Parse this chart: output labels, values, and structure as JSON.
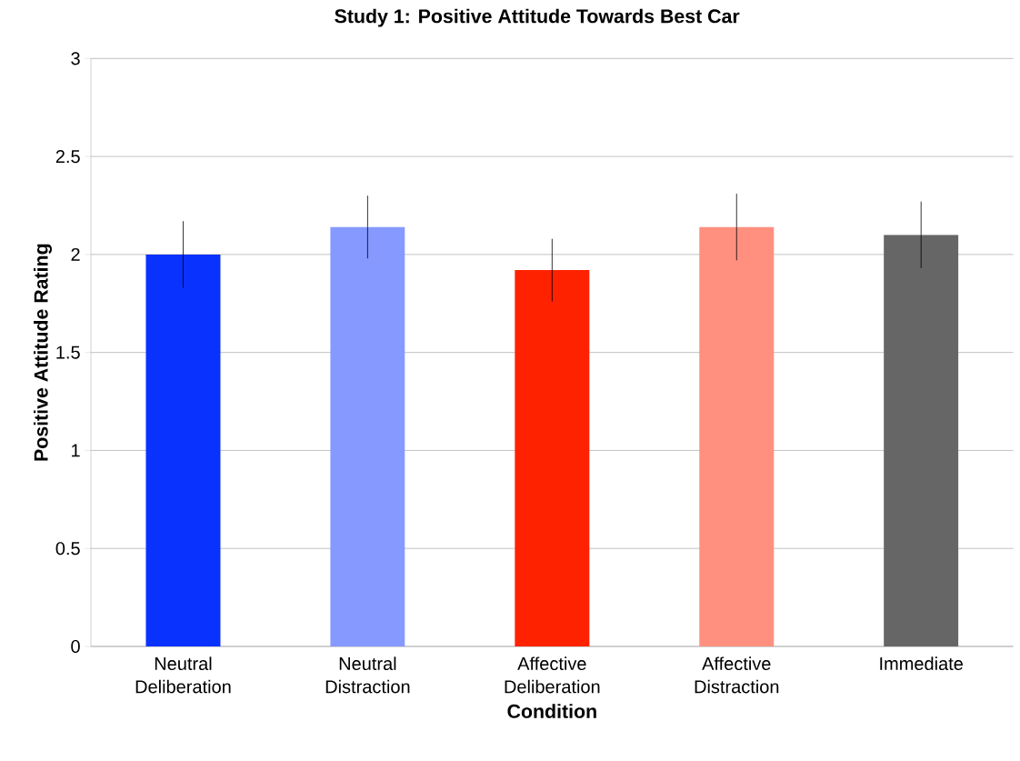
{
  "chart_data": {
    "type": "bar",
    "title": "Study 1: Positive Attitude Towards Best Car",
    "xlabel": "Condition",
    "ylabel": "Positive Attitude Rating",
    "categories": [
      "Neutral Deliberation",
      "Neutral Distraction",
      "Affective Deliberation",
      "Affective Distraction",
      "Immediate"
    ],
    "values": [
      2.0,
      2.14,
      1.92,
      2.14,
      2.1
    ],
    "errors": [
      0.17,
      0.16,
      0.16,
      0.17,
      0.17
    ],
    "colors": [
      "#0a32ff",
      "#8599ff",
      "#ff2200",
      "#ff9080",
      "#666666"
    ],
    "ylim": [
      0,
      3
    ],
    "yticks": [
      0,
      0.5,
      1,
      1.5,
      2,
      2.5,
      3
    ],
    "grid": "y"
  }
}
